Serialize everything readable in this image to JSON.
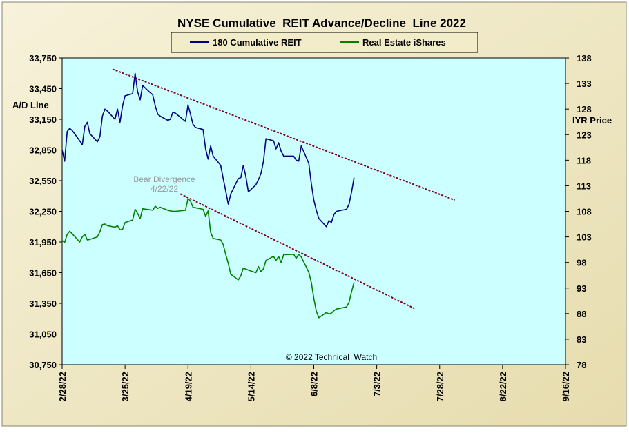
{
  "chart_data": {
    "type": "line",
    "title": "NYSE Cumulative  REIT Advance/Decline  Line 2022",
    "ylabel_left": "A/D Line",
    "ylabel_right": "IYR Price",
    "copyright": "© 2022 Technical  Watch",
    "annotation": {
      "line1": "Bear Divergence",
      "line2": "4/22/22"
    },
    "legend": {
      "placement": "top-center"
    },
    "grid": false,
    "colors": {
      "plot_bg": "#ccffff",
      "outer_bg": "#f3ecc8",
      "series1": "#000080",
      "series2": "#008000",
      "trend": "#800020"
    },
    "x_axis": {
      "type": "date",
      "range": [
        "2022-02-28",
        "2022-09-16"
      ],
      "ticks": [
        "2/28/22",
        "3/25/22",
        "4/19/22",
        "5/14/22",
        "6/8/22",
        "7/3/22",
        "7/28/22",
        "8/22/22",
        "9/16/22"
      ]
    },
    "y_left": {
      "range": [
        30750,
        33750
      ],
      "ticks": [
        "30,750",
        "31,050",
        "31,350",
        "31,650",
        "31,950",
        "32,250",
        "32,550",
        "32,850",
        "33,150",
        "33,450",
        "33,750"
      ]
    },
    "y_right": {
      "range": [
        78,
        138
      ],
      "ticks": [
        "78",
        "83",
        "88",
        "93",
        "98",
        "103",
        "108",
        "113",
        "118",
        "123",
        "128",
        "133",
        "138"
      ]
    },
    "series": [
      {
        "name": "180 Cumulative REIT",
        "axis": "left",
        "x": [
          "2022-02-28",
          "2022-03-01",
          "2022-03-02",
          "2022-03-03",
          "2022-03-04",
          "2022-03-07",
          "2022-03-08",
          "2022-03-09",
          "2022-03-10",
          "2022-03-11",
          "2022-03-14",
          "2022-03-15",
          "2022-03-16",
          "2022-03-17",
          "2022-03-18",
          "2022-03-21",
          "2022-03-22",
          "2022-03-23",
          "2022-03-24",
          "2022-03-25",
          "2022-03-28",
          "2022-03-29",
          "2022-03-30",
          "2022-03-31",
          "2022-04-01",
          "2022-04-04",
          "2022-04-05",
          "2022-04-06",
          "2022-04-07",
          "2022-04-08",
          "2022-04-11",
          "2022-04-12",
          "2022-04-13",
          "2022-04-14",
          "2022-04-18",
          "2022-04-19",
          "2022-04-20",
          "2022-04-21",
          "2022-04-22",
          "2022-04-25",
          "2022-04-26",
          "2022-04-27",
          "2022-04-28",
          "2022-04-29",
          "2022-05-02",
          "2022-05-03",
          "2022-05-04",
          "2022-05-05",
          "2022-05-06",
          "2022-05-09",
          "2022-05-10",
          "2022-05-11",
          "2022-05-12",
          "2022-05-13",
          "2022-05-16",
          "2022-05-17",
          "2022-05-18",
          "2022-05-19",
          "2022-05-20",
          "2022-05-23",
          "2022-05-24",
          "2022-05-25",
          "2022-05-26",
          "2022-05-27",
          "2022-05-31",
          "2022-06-01",
          "2022-06-02",
          "2022-06-03",
          "2022-06-06",
          "2022-06-07",
          "2022-06-08",
          "2022-06-09",
          "2022-06-10",
          "2022-06-13",
          "2022-06-14",
          "2022-06-15",
          "2022-06-16",
          "2022-06-17",
          "2022-06-21",
          "2022-06-22",
          "2022-06-23",
          "2022-06-24"
        ],
        "values": [
          32850,
          32740,
          33030,
          33060,
          33040,
          32940,
          32900,
          33080,
          33120,
          33010,
          32930,
          32980,
          33180,
          33250,
          33230,
          33150,
          33250,
          33120,
          33280,
          33380,
          33400,
          33600,
          33420,
          33340,
          33480,
          33410,
          33390,
          33280,
          33200,
          33180,
          33140,
          33150,
          33220,
          33210,
          33130,
          33290,
          33200,
          33100,
          33070,
          33050,
          32860,
          32760,
          32890,
          32790,
          32700,
          32570,
          32450,
          32320,
          32420,
          32570,
          32580,
          32700,
          32590,
          32440,
          32510,
          32560,
          32620,
          32740,
          32960,
          32940,
          32860,
          32920,
          32840,
          32790,
          32790,
          32750,
          32740,
          32890,
          32720,
          32520,
          32360,
          32260,
          32180,
          32100,
          32160,
          32140,
          32220,
          32250,
          32270,
          32320,
          32440,
          32580
        ]
      },
      {
        "name": "Real Estate iShares",
        "axis": "right",
        "x": [
          "2022-02-28",
          "2022-03-01",
          "2022-03-02",
          "2022-03-03",
          "2022-03-04",
          "2022-03-07",
          "2022-03-08",
          "2022-03-09",
          "2022-03-10",
          "2022-03-11",
          "2022-03-14",
          "2022-03-15",
          "2022-03-16",
          "2022-03-17",
          "2022-03-18",
          "2022-03-21",
          "2022-03-22",
          "2022-03-23",
          "2022-03-24",
          "2022-03-25",
          "2022-03-28",
          "2022-03-29",
          "2022-03-30",
          "2022-03-31",
          "2022-04-01",
          "2022-04-04",
          "2022-04-05",
          "2022-04-06",
          "2022-04-07",
          "2022-04-08",
          "2022-04-11",
          "2022-04-12",
          "2022-04-13",
          "2022-04-14",
          "2022-04-18",
          "2022-04-19",
          "2022-04-20",
          "2022-04-21",
          "2022-04-22",
          "2022-04-25",
          "2022-04-26",
          "2022-04-27",
          "2022-04-28",
          "2022-04-29",
          "2022-05-02",
          "2022-05-03",
          "2022-05-04",
          "2022-05-05",
          "2022-05-06",
          "2022-05-09",
          "2022-05-10",
          "2022-05-11",
          "2022-05-12",
          "2022-05-13",
          "2022-05-16",
          "2022-05-17",
          "2022-05-18",
          "2022-05-19",
          "2022-05-20",
          "2022-05-23",
          "2022-05-24",
          "2022-05-25",
          "2022-05-26",
          "2022-05-27",
          "2022-05-31",
          "2022-06-01",
          "2022-06-02",
          "2022-06-03",
          "2022-06-06",
          "2022-06-07",
          "2022-06-08",
          "2022-06-09",
          "2022-06-10",
          "2022-06-13",
          "2022-06-14",
          "2022-06-15",
          "2022-06-16",
          "2022-06-17",
          "2022-06-21",
          "2022-06-22",
          "2022-06-23",
          "2022-06-24"
        ],
        "values": [
          102.3,
          101.9,
          103.5,
          104.1,
          103.6,
          102.0,
          103.0,
          103.5,
          102.4,
          102.5,
          103.0,
          104.0,
          105.4,
          105.5,
          105.2,
          104.9,
          105.2,
          104.4,
          104.5,
          105.8,
          106.3,
          108.4,
          107.6,
          106.6,
          108.5,
          108.3,
          108.2,
          109.0,
          108.6,
          108.8,
          108.2,
          108.1,
          108.0,
          108.0,
          108.2,
          110.5,
          110.0,
          108.8,
          108.7,
          108.4,
          107.0,
          108.1,
          103.9,
          102.7,
          102.4,
          101.5,
          99.6,
          97.8,
          95.7,
          94.6,
          95.4,
          96.9,
          96.7,
          96.5,
          96.0,
          97.2,
          96.2,
          96.8,
          98.4,
          99.2,
          98.4,
          99.2,
          98.0,
          99.5,
          99.6,
          98.8,
          99.6,
          99.1,
          96.1,
          94.1,
          91.0,
          88.5,
          87.2,
          88.2,
          87.9,
          88.1,
          88.6,
          88.9,
          89.3,
          90.2,
          92.3,
          94.1
        ]
      },
      {
        "name": "",
        "axis": "left",
        "style": "dashed",
        "x": [
          "2022-03-20",
          "2022-08-03"
        ],
        "values": [
          33640,
          32360
        ]
      },
      {
        "name": "",
        "axis": "left",
        "style": "dashed",
        "x": [
          "2022-04-16",
          "2022-07-18"
        ],
        "values": [
          32420,
          31300
        ]
      }
    ]
  }
}
